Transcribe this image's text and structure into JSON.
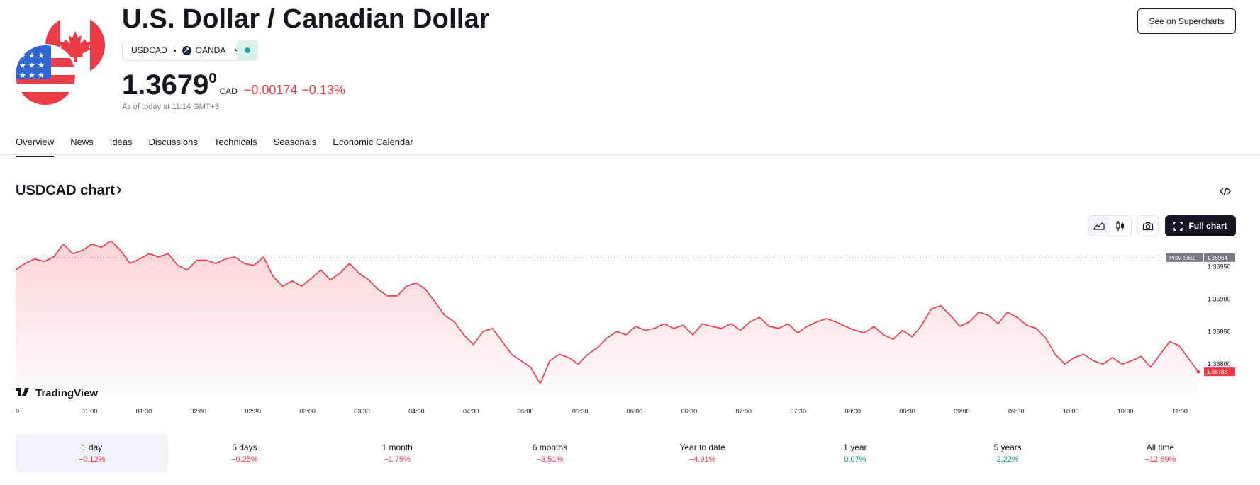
{
  "header": {
    "title": "U.S. Dollar / Canadian Dollar",
    "symbol": "USDCAD",
    "exchange": "OANDA",
    "price_main": "1.3679",
    "price_sup": "0",
    "currency": "CAD",
    "change": "−0.00174",
    "change_pct": "−0.13%",
    "as_of": "As of today at 11:14 GMT+3",
    "supercharts_label": "See on Supercharts",
    "colors": {
      "negative": "#f23645",
      "positive": "#089981",
      "market_open": "#22ab94"
    }
  },
  "tabs": [
    {
      "label": "Overview",
      "active": true
    },
    {
      "label": "News"
    },
    {
      "label": "Ideas"
    },
    {
      "label": "Discussions"
    },
    {
      "label": "Technicals"
    },
    {
      "label": "Seasonals"
    },
    {
      "label": "Economic Calendar"
    }
  ],
  "chart_section": {
    "heading": "USDCAD chart",
    "full_chart_label": "Full chart",
    "brand": "TradingView",
    "prev_close_label": "Prev close",
    "prev_close_value": "1.36964",
    "last_value_label": "1.36788"
  },
  "chart_data": {
    "type": "area",
    "x_ticks": [
      "9",
      "01:00",
      "01:30",
      "02:00",
      "02:30",
      "03:00",
      "03:30",
      "04:00",
      "04:30",
      "05:00",
      "05:30",
      "06:00",
      "06:30",
      "07:00",
      "07:30",
      "08:00",
      "08:30",
      "09:00",
      "09:30",
      "10:00",
      "10:30",
      "11:00"
    ],
    "y_ticks": [
      "1.36950",
      "1.36900",
      "1.36850",
      "1.36800"
    ],
    "ylim": [
      1.3675,
      1.3699
    ],
    "prev_close": 1.36964,
    "last": 1.36788,
    "series": [
      {
        "values": [
          1.36945,
          1.36955,
          1.36962,
          1.36958,
          1.36965,
          1.36985,
          1.3697,
          1.36975,
          1.36985,
          1.3698,
          1.3699,
          1.36975,
          1.36955,
          1.36962,
          1.3697,
          1.36965,
          1.3697,
          1.36952,
          1.36945,
          1.3696,
          1.3696,
          1.36955,
          1.36962,
          1.36965,
          1.36955,
          1.36952,
          1.36965,
          1.36935,
          1.3692,
          1.36928,
          1.3692,
          1.36932,
          1.36945,
          1.3693,
          1.3694,
          1.36955,
          1.3694,
          1.3693,
          1.36915,
          1.36905,
          1.36905,
          1.3692,
          1.36925,
          1.36915,
          1.36895,
          1.36875,
          1.36865,
          1.36845,
          1.3683,
          1.3685,
          1.36855,
          1.36835,
          1.36815,
          1.36805,
          1.36795,
          1.3677,
          1.36805,
          1.36815,
          1.3681,
          1.368,
          1.36815,
          1.36825,
          1.3684,
          1.3685,
          1.36845,
          1.36858,
          1.36852,
          1.36855,
          1.36862,
          1.36855,
          1.3686,
          1.36845,
          1.36862,
          1.36858,
          1.36855,
          1.36862,
          1.36852,
          1.36865,
          1.36872,
          1.36858,
          1.36855,
          1.36862,
          1.36848,
          1.36858,
          1.36865,
          1.3687,
          1.36865,
          1.36858,
          1.36852,
          1.36848,
          1.36858,
          1.36845,
          1.36838,
          1.36852,
          1.36842,
          1.3686,
          1.36885,
          1.3689,
          1.36875,
          1.36858,
          1.36865,
          1.3688,
          1.36875,
          1.36862,
          1.3688,
          1.36872,
          1.3686,
          1.36855,
          1.3684,
          1.36815,
          1.368,
          1.3681,
          1.36815,
          1.36805,
          1.368,
          1.3681,
          1.368,
          1.36805,
          1.36812,
          1.36795,
          1.36815,
          1.36835,
          1.36828,
          1.36808,
          1.36788
        ]
      }
    ]
  },
  "periods": [
    {
      "label": "1 day",
      "value": "−0.12%",
      "sign": "neg",
      "active": true
    },
    {
      "label": "5 days",
      "value": "−0.25%",
      "sign": "neg"
    },
    {
      "label": "1 month",
      "value": "−1.75%",
      "sign": "neg"
    },
    {
      "label": "6 months",
      "value": "−3.51%",
      "sign": "neg"
    },
    {
      "label": "Year to date",
      "value": "−4.91%",
      "sign": "neg"
    },
    {
      "label": "1 year",
      "value": "0.07%",
      "sign": "pos"
    },
    {
      "label": "5 years",
      "value": "2.22%",
      "sign": "pos"
    },
    {
      "label": "All time",
      "value": "−12.69%",
      "sign": "neg"
    }
  ]
}
